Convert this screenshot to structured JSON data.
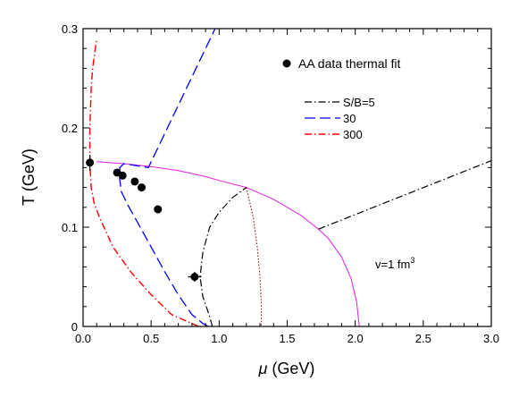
{
  "chart_data": {
    "type": "line",
    "xlabel_symbol": "μ",
    "xlabel_unit": " (GeV)",
    "ylabel": "T (GeV)",
    "xlim": [
      0,
      3.0
    ],
    "ylim": [
      0,
      0.3
    ],
    "xticks": [
      "0.0",
      "0.5",
      "1.0",
      "1.5",
      "2.0",
      "2.5",
      "3.0"
    ],
    "yticks": [
      "0",
      "0.1",
      "0.2",
      "0.3"
    ],
    "grid": false,
    "legend_placement": "top-right",
    "data_legend_label": "AA data thermal fit",
    "legend_title_prefix": "S/B=",
    "annotation": {
      "base": "v=1 fm",
      "sup": "3"
    },
    "points": [
      {
        "x": 0.05,
        "y": 0.165,
        "xerr": 0.02,
        "yerr": 0.008
      },
      {
        "x": 0.25,
        "y": 0.155
      },
      {
        "x": 0.29,
        "y": 0.152
      },
      {
        "x": 0.38,
        "y": 0.146
      },
      {
        "x": 0.43,
        "y": 0.14
      },
      {
        "x": 0.55,
        "y": 0.118,
        "yerr": 0.004
      },
      {
        "x": 0.82,
        "y": 0.05,
        "xerr": 0.05,
        "yerr": 0.005
      }
    ],
    "series": [
      {
        "label": "",
        "style": "solid",
        "color": "#e020e0",
        "width": 1,
        "x": [
          0.1,
          0.3,
          0.5,
          0.7,
          0.9,
          1.0,
          1.2,
          1.4,
          1.6,
          1.73,
          1.8,
          1.9,
          1.97,
          2.01,
          2.03
        ],
        "y": [
          0.166,
          0.164,
          0.161,
          0.157,
          0.151,
          0.147,
          0.14,
          0.128,
          0.112,
          0.098,
          0.089,
          0.07,
          0.048,
          0.025,
          0.0
        ]
      },
      {
        "label": "5",
        "style": "dashdot",
        "color": "#000000",
        "width": 1.2,
        "x": [
          0.95,
          0.93,
          0.88,
          0.86,
          0.88,
          0.93,
          1.0,
          1.1,
          1.2
        ],
        "y": [
          0.0,
          0.01,
          0.03,
          0.05,
          0.075,
          0.1,
          0.115,
          0.13,
          0.14
        ]
      },
      {
        "label": "",
        "style": "dashdot",
        "color": "#000000",
        "width": 1.2,
        "x": [
          1.73,
          3.0
        ],
        "y": [
          0.098,
          0.167
        ]
      },
      {
        "label": "30",
        "style": "dashed",
        "color": "#0000ff",
        "width": 1.3,
        "x": [
          0.92,
          0.88,
          0.8,
          0.7,
          0.6,
          0.5,
          0.4,
          0.33,
          0.28,
          0.27,
          0.27,
          0.3,
          0.48,
          0.97
        ],
        "y": [
          0.0,
          0.003,
          0.012,
          0.032,
          0.055,
          0.08,
          0.105,
          0.122,
          0.136,
          0.148,
          0.16,
          0.164,
          0.16,
          0.3
        ]
      },
      {
        "label": "300",
        "style": "dashdot",
        "color": "#ff0000",
        "width": 1.4,
        "x": [
          0.85,
          0.8,
          0.65,
          0.5,
          0.35,
          0.22,
          0.12,
          0.08,
          0.06,
          0.05,
          0.05,
          0.06,
          0.07,
          0.09,
          0.1
        ],
        "y": [
          0.0,
          0.003,
          0.012,
          0.032,
          0.055,
          0.08,
          0.11,
          0.125,
          0.14,
          0.165,
          0.2,
          0.24,
          0.26,
          0.28,
          0.29
        ]
      },
      {
        "label": "",
        "style": "dotted",
        "color": "#8b0000",
        "width": 1,
        "x": [
          1.2,
          1.25,
          1.28,
          1.3,
          1.31,
          1.31
        ],
        "y": [
          0.14,
          0.11,
          0.08,
          0.05,
          0.02,
          0.0
        ]
      }
    ]
  }
}
